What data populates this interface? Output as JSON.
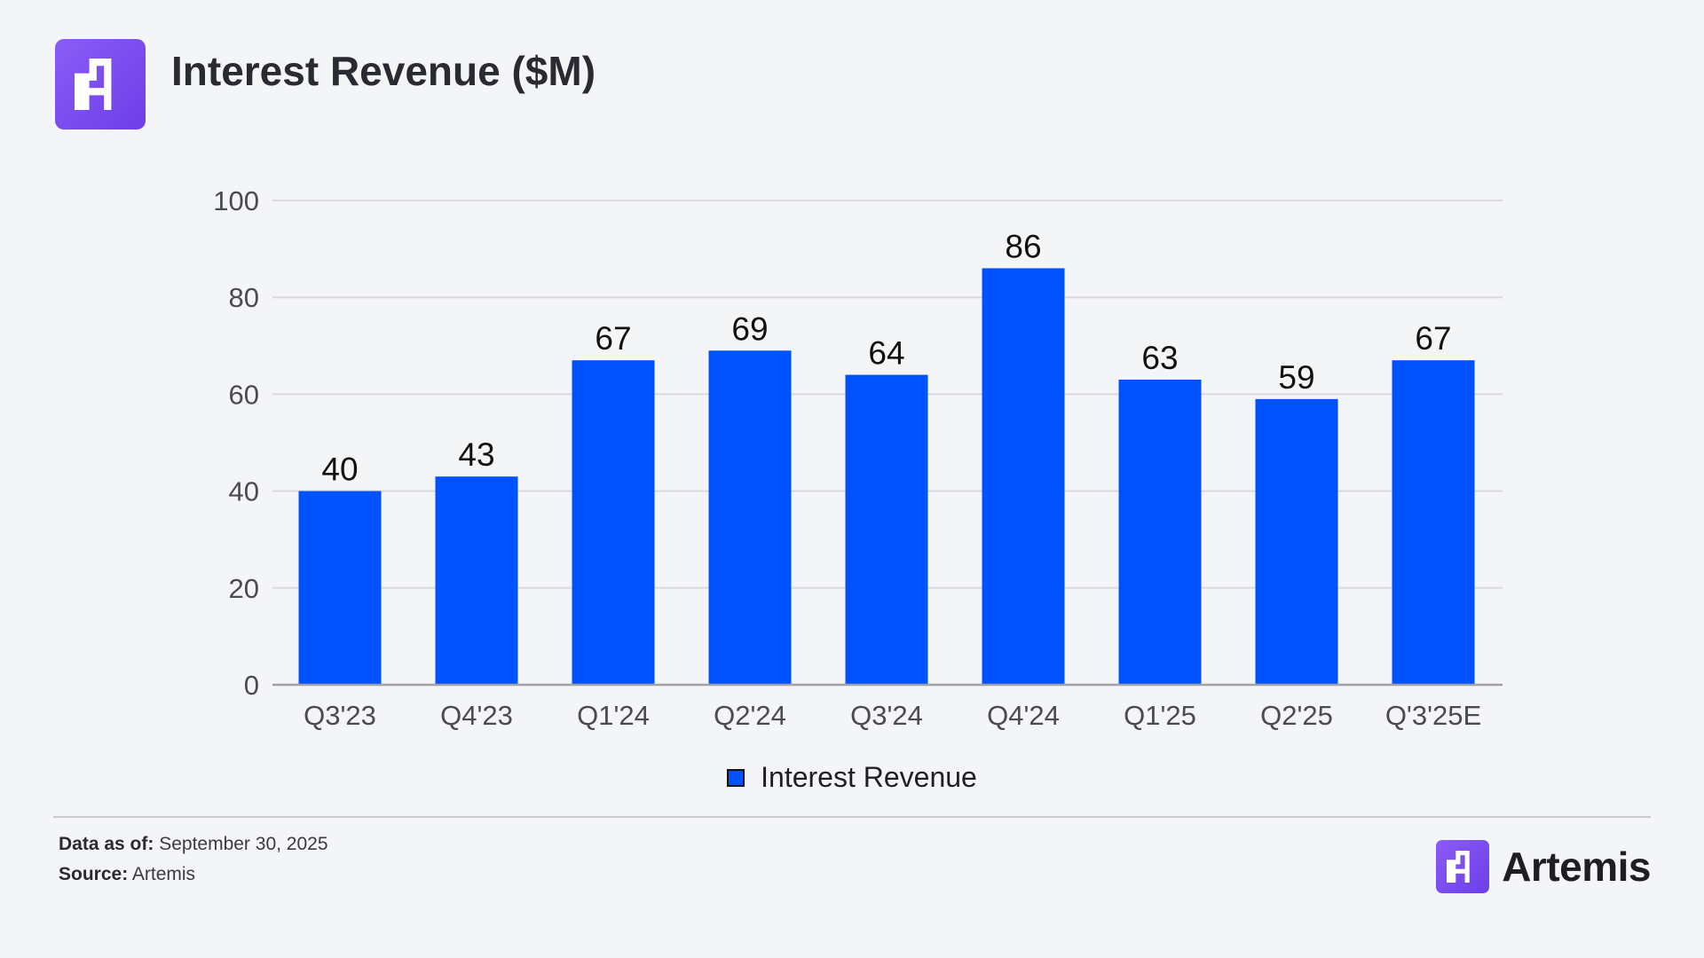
{
  "header": {
    "title": "Interest Revenue ($M)",
    "logo_icon": "artemis-logo-icon"
  },
  "chart_data": {
    "type": "bar",
    "title": "Interest Revenue ($M)",
    "categories": [
      "Q3'23",
      "Q4'23",
      "Q1'24",
      "Q2'24",
      "Q3'24",
      "Q4'24",
      "Q1'25",
      "Q2'25",
      "Q'3'25E"
    ],
    "series": [
      {
        "name": "Interest Revenue",
        "values": [
          40,
          43,
          67,
          69,
          64,
          86,
          63,
          59,
          67
        ],
        "color": "#0052ff"
      }
    ],
    "ylim": [
      0,
      100
    ],
    "yticks": [
      0,
      20,
      40,
      60,
      80,
      100
    ],
    "xlabel": "",
    "ylabel": "",
    "grid": true,
    "legend_position": "bottom-center"
  },
  "legend": {
    "label": "Interest Revenue",
    "color": "#0052ff"
  },
  "footer": {
    "data_as_of_label": "Data as of:",
    "data_as_of_value": "September 30, 2025",
    "source_label": "Source:",
    "source_value": "Artemis"
  },
  "brand": {
    "name": "Artemis",
    "icon": "artemis-logo-icon"
  },
  "colors": {
    "bar": "#0052ff",
    "grid": "#d9d9de",
    "axis": "#a0a0a6",
    "background": "#f4f5f7",
    "logo": "#7c4dff"
  }
}
